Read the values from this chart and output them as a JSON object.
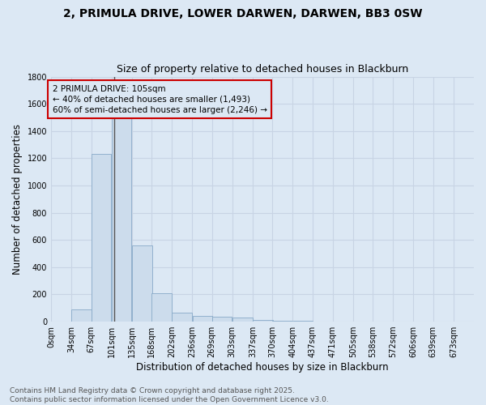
{
  "title_line1": "2, PRIMULA DRIVE, LOWER DARWEN, DARWEN, BB3 0SW",
  "title_line2": "Size of property relative to detached houses in Blackburn",
  "xlabel": "Distribution of detached houses by size in Blackburn",
  "ylabel": "Number of detached properties",
  "bar_color": "#ccdcec",
  "bar_edge_color": "#88aac8",
  "grid_color": "#c8d4e4",
  "background_color": "#dce8f4",
  "annotation_box_edge_color": "#cc0000",
  "annotation_line1": "2 PRIMULA DRIVE: 105sqm",
  "annotation_line2": "← 40% of detached houses are smaller (1,493)",
  "annotation_line3": "60% of semi-detached houses are larger (2,246) →",
  "marker_line_value": 105,
  "categories": [
    "0sqm",
    "34sqm",
    "67sqm",
    "101sqm",
    "135sqm",
    "168sqm",
    "202sqm",
    "236sqm",
    "269sqm",
    "303sqm",
    "337sqm",
    "370sqm",
    "404sqm",
    "437sqm",
    "471sqm",
    "505sqm",
    "538sqm",
    "572sqm",
    "606sqm",
    "639sqm",
    "673sqm"
  ],
  "bin_edges": [
    0,
    34,
    67,
    101,
    135,
    168,
    202,
    236,
    269,
    303,
    337,
    370,
    404,
    437,
    471,
    505,
    538,
    572,
    606,
    639,
    673
  ],
  "values": [
    0,
    90,
    1235,
    1515,
    560,
    210,
    65,
    45,
    35,
    28,
    15,
    8,
    4,
    2,
    1,
    0,
    0,
    0,
    0,
    0,
    0
  ],
  "ylim": [
    0,
    1800
  ],
  "yticks": [
    0,
    200,
    400,
    600,
    800,
    1000,
    1200,
    1400,
    1600,
    1800
  ],
  "footnote": "Contains HM Land Registry data © Crown copyright and database right 2025.\nContains public sector information licensed under the Open Government Licence v3.0.",
  "title_fontsize": 10,
  "subtitle_fontsize": 9,
  "axis_label_fontsize": 8.5,
  "tick_fontsize": 7,
  "annotation_fontsize": 7.5,
  "footnote_fontsize": 6.5
}
